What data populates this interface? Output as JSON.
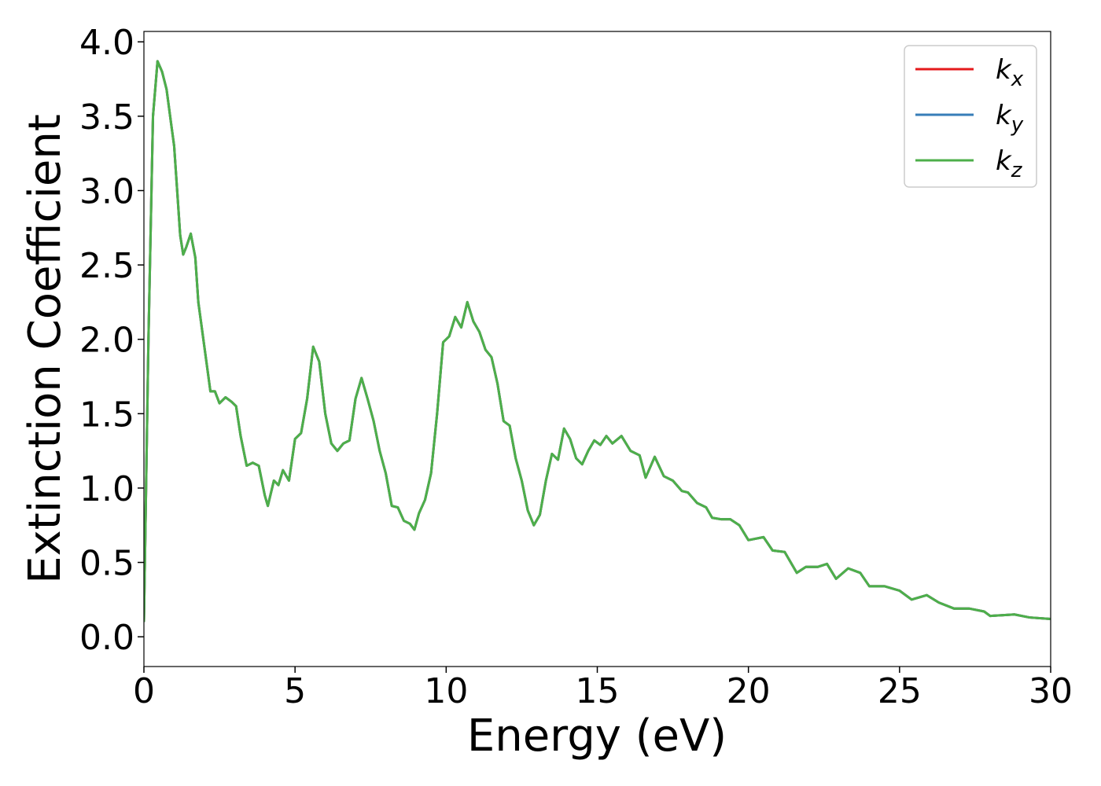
{
  "chart_data": {
    "type": "line",
    "xlabel": "Energy (eV)",
    "ylabel": "Extinction Coefficient",
    "xlim": [
      0,
      30
    ],
    "ylim": [
      -0.2,
      4.07
    ],
    "xticks": [
      0,
      5,
      10,
      15,
      20,
      25,
      30
    ],
    "yticks": [
      {
        "value": 0,
        "label": "0.0"
      },
      {
        "value": 0.5,
        "label": "0.5"
      },
      {
        "value": 1,
        "label": "1.0"
      },
      {
        "value": 1.5,
        "label": "1.5"
      },
      {
        "value": 2,
        "label": "2.0"
      },
      {
        "value": 2.5,
        "label": "2.5"
      },
      {
        "value": 3,
        "label": "3.0"
      },
      {
        "value": 3.5,
        "label": "3.5"
      },
      {
        "value": 4,
        "label": "4.0"
      }
    ],
    "legend": "upper right",
    "x": [
      0,
      0.15,
      0.3,
      0.45,
      0.6,
      0.75,
      0.9,
      1.0,
      1.1,
      1.2,
      1.3,
      1.4,
      1.55,
      1.7,
      1.8,
      2.0,
      2.2,
      2.35,
      2.5,
      2.7,
      2.9,
      3.05,
      3.2,
      3.4,
      3.6,
      3.8,
      4.0,
      4.1,
      4.3,
      4.45,
      4.6,
      4.8,
      5.0,
      5.2,
      5.4,
      5.6,
      5.8,
      6.0,
      6.2,
      6.4,
      6.6,
      6.8,
      7.0,
      7.2,
      7.4,
      7.6,
      7.8,
      8.0,
      8.2,
      8.4,
      8.6,
      8.8,
      8.95,
      9.1,
      9.3,
      9.5,
      9.7,
      9.9,
      10.1,
      10.3,
      10.5,
      10.7,
      10.9,
      11.1,
      11.3,
      11.5,
      11.7,
      11.9,
      12.1,
      12.3,
      12.5,
      12.7,
      12.9,
      13.1,
      13.3,
      13.5,
      13.7,
      13.9,
      14.1,
      14.3,
      14.5,
      14.7,
      14.9,
      15.1,
      15.3,
      15.5,
      15.8,
      16.1,
      16.4,
      16.6,
      16.9,
      17.2,
      17.5,
      17.8,
      18.0,
      18.3,
      18.6,
      18.8,
      19.1,
      19.4,
      19.7,
      20.0,
      20.5,
      20.8,
      21.2,
      21.6,
      21.9,
      22.3,
      22.6,
      22.9,
      23.3,
      23.7,
      24.0,
      24.5,
      25.0,
      25.4,
      25.9,
      26.3,
      26.8,
      27.3,
      27.8,
      28.0,
      28.8,
      29.3,
      30
    ],
    "series": [
      {
        "name": "k_x",
        "color": "#e41a1c",
        "values": [
          0.1,
          2.0,
          3.5,
          3.87,
          3.8,
          3.68,
          3.45,
          3.3,
          3.0,
          2.7,
          2.57,
          2.62,
          2.71,
          2.55,
          2.25,
          1.95,
          1.65,
          1.65,
          1.57,
          1.61,
          1.58,
          1.55,
          1.35,
          1.15,
          1.17,
          1.15,
          0.95,
          0.88,
          1.05,
          1.02,
          1.12,
          1.05,
          1.33,
          1.37,
          1.6,
          1.95,
          1.85,
          1.5,
          1.3,
          1.25,
          1.3,
          1.32,
          1.6,
          1.74,
          1.6,
          1.45,
          1.25,
          1.1,
          0.88,
          0.87,
          0.78,
          0.76,
          0.72,
          0.83,
          0.92,
          1.1,
          1.5,
          1.98,
          2.02,
          2.15,
          2.08,
          2.25,
          2.12,
          2.05,
          1.93,
          1.88,
          1.7,
          1.45,
          1.42,
          1.2,
          1.05,
          0.85,
          0.75,
          0.82,
          1.05,
          1.23,
          1.19,
          1.4,
          1.33,
          1.2,
          1.16,
          1.25,
          1.32,
          1.29,
          1.35,
          1.3,
          1.35,
          1.25,
          1.22,
          1.07,
          1.21,
          1.08,
          1.05,
          0.98,
          0.97,
          0.9,
          0.87,
          0.8,
          0.79,
          0.79,
          0.75,
          0.65,
          0.67,
          0.58,
          0.57,
          0.43,
          0.47,
          0.47,
          0.49,
          0.39,
          0.46,
          0.43,
          0.34,
          0.34,
          0.31,
          0.25,
          0.28,
          0.23,
          0.19,
          0.19,
          0.17,
          0.14,
          0.15,
          0.13,
          0.12
        ]
      },
      {
        "name": "k_y",
        "color": "#377eb8",
        "values": [
          0.1,
          2.0,
          3.5,
          3.87,
          3.8,
          3.68,
          3.45,
          3.3,
          3.0,
          2.7,
          2.57,
          2.62,
          2.71,
          2.55,
          2.25,
          1.95,
          1.65,
          1.65,
          1.57,
          1.61,
          1.58,
          1.55,
          1.35,
          1.15,
          1.17,
          1.15,
          0.95,
          0.88,
          1.05,
          1.02,
          1.12,
          1.05,
          1.33,
          1.37,
          1.6,
          1.95,
          1.85,
          1.5,
          1.3,
          1.25,
          1.3,
          1.32,
          1.6,
          1.74,
          1.6,
          1.45,
          1.25,
          1.1,
          0.88,
          0.87,
          0.78,
          0.76,
          0.72,
          0.83,
          0.92,
          1.1,
          1.5,
          1.98,
          2.02,
          2.15,
          2.08,
          2.25,
          2.12,
          2.05,
          1.93,
          1.88,
          1.7,
          1.45,
          1.42,
          1.2,
          1.05,
          0.85,
          0.75,
          0.82,
          1.05,
          1.23,
          1.19,
          1.4,
          1.33,
          1.2,
          1.16,
          1.25,
          1.32,
          1.29,
          1.35,
          1.3,
          1.35,
          1.25,
          1.22,
          1.07,
          1.21,
          1.08,
          1.05,
          0.98,
          0.97,
          0.9,
          0.87,
          0.8,
          0.79,
          0.79,
          0.75,
          0.65,
          0.67,
          0.58,
          0.57,
          0.43,
          0.47,
          0.47,
          0.49,
          0.39,
          0.46,
          0.43,
          0.34,
          0.34,
          0.31,
          0.25,
          0.28,
          0.23,
          0.19,
          0.19,
          0.17,
          0.14,
          0.15,
          0.13,
          0.12
        ]
      },
      {
        "name": "k_z",
        "color": "#4daf4a",
        "values": [
          0.1,
          2.0,
          3.5,
          3.87,
          3.8,
          3.68,
          3.45,
          3.3,
          3.0,
          2.7,
          2.57,
          2.62,
          2.71,
          2.55,
          2.25,
          1.95,
          1.65,
          1.65,
          1.57,
          1.61,
          1.58,
          1.55,
          1.35,
          1.15,
          1.17,
          1.15,
          0.95,
          0.88,
          1.05,
          1.02,
          1.12,
          1.05,
          1.33,
          1.37,
          1.6,
          1.95,
          1.85,
          1.5,
          1.3,
          1.25,
          1.3,
          1.32,
          1.6,
          1.74,
          1.6,
          1.45,
          1.25,
          1.1,
          0.88,
          0.87,
          0.78,
          0.76,
          0.72,
          0.83,
          0.92,
          1.1,
          1.5,
          1.98,
          2.02,
          2.15,
          2.08,
          2.25,
          2.12,
          2.05,
          1.93,
          1.88,
          1.7,
          1.45,
          1.42,
          1.2,
          1.05,
          0.85,
          0.75,
          0.82,
          1.05,
          1.23,
          1.19,
          1.4,
          1.33,
          1.2,
          1.16,
          1.25,
          1.32,
          1.29,
          1.35,
          1.3,
          1.35,
          1.25,
          1.22,
          1.07,
          1.21,
          1.08,
          1.05,
          0.98,
          0.97,
          0.9,
          0.87,
          0.8,
          0.79,
          0.79,
          0.75,
          0.65,
          0.67,
          0.58,
          0.57,
          0.43,
          0.47,
          0.47,
          0.49,
          0.39,
          0.46,
          0.43,
          0.34,
          0.34,
          0.31,
          0.25,
          0.28,
          0.23,
          0.19,
          0.19,
          0.17,
          0.14,
          0.15,
          0.13,
          0.12
        ]
      }
    ]
  }
}
